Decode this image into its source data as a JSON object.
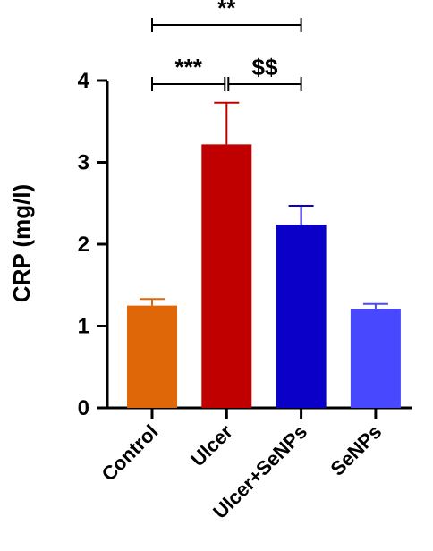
{
  "chart_data": {
    "type": "bar",
    "title": "",
    "xlabel": "",
    "ylabel": "CRP (mg/l)",
    "ylim": [
      0,
      4
    ],
    "yticks": [
      0,
      1,
      2,
      3,
      4
    ],
    "grid": false,
    "legend": "none",
    "categories": [
      "Control",
      "Ulcer",
      "Ulcer+SeNPs",
      "SeNPs"
    ],
    "values": [
      1.25,
      3.22,
      2.24,
      1.21
    ],
    "errors": [
      0.08,
      0.51,
      0.23,
      0.06
    ],
    "colors": [
      "#e06708",
      "#c00000",
      "#0a00c8",
      "#4848ff"
    ],
    "significance": [
      {
        "from": "Control",
        "to": "Ulcer",
        "label": "***"
      },
      {
        "from": "Ulcer",
        "to": "Ulcer+SeNPs",
        "label": "$$"
      },
      {
        "from": "Control",
        "to": "Ulcer+SeNPs",
        "label": "**"
      }
    ]
  }
}
